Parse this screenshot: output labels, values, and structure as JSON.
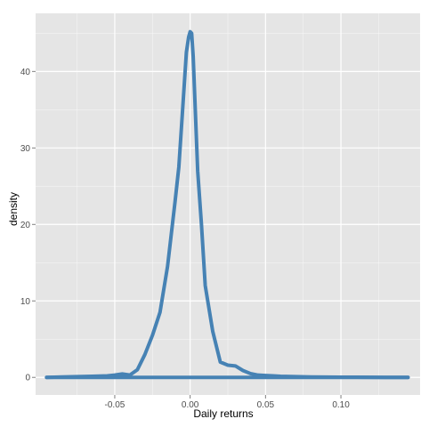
{
  "chart_data": {
    "type": "line",
    "title": "",
    "xlabel": "Daily returns",
    "ylabel": "density",
    "xlim": [
      -0.1025,
      0.1525
    ],
    "ylim": [
      -2.3,
      47.6
    ],
    "x_ticks": [
      -0.05,
      0.0,
      0.05,
      0.1
    ],
    "x_tick_labels": [
      "-0.05",
      "0.00",
      "0.05",
      "0.10"
    ],
    "y_ticks": [
      0,
      10,
      20,
      30,
      40
    ],
    "y_tick_labels": [
      "0",
      "10",
      "20",
      "30",
      "40"
    ],
    "grid": true,
    "legend": "none",
    "colors": {
      "panel": "#e5e5e5",
      "grid": "#ffffff",
      "line": "#4682b4"
    },
    "series": [
      {
        "x": [
          -0.0952,
          -0.085,
          -0.075,
          -0.065,
          -0.055,
          -0.05,
          -0.045,
          -0.04,
          -0.035,
          -0.03,
          -0.025,
          -0.02,
          -0.015,
          -0.01,
          -0.0075,
          -0.005,
          -0.0025,
          -0.001,
          0.0,
          0.001,
          0.002,
          0.003,
          0.005,
          0.0075,
          0.01,
          0.015,
          0.02,
          0.025,
          0.03,
          0.035,
          0.04,
          0.045,
          0.05,
          0.055,
          0.06,
          0.07,
          0.08,
          0.09,
          0.1,
          0.11,
          0.12,
          0.13,
          0.1445
        ],
        "y": [
          0.0,
          0.05,
          0.1,
          0.15,
          0.2,
          0.3,
          0.45,
          0.3,
          1.0,
          3.0,
          5.5,
          8.5,
          14.5,
          23.0,
          27.5,
          35.0,
          42.5,
          44.5,
          45.2,
          45.0,
          42.0,
          37.0,
          27.0,
          20.0,
          12.0,
          6.0,
          2.0,
          1.6,
          1.5,
          0.9,
          0.5,
          0.3,
          0.25,
          0.2,
          0.15,
          0.1,
          0.05,
          0.04,
          0.03,
          0.02,
          0.01,
          0.0,
          0.0
        ]
      }
    ]
  }
}
